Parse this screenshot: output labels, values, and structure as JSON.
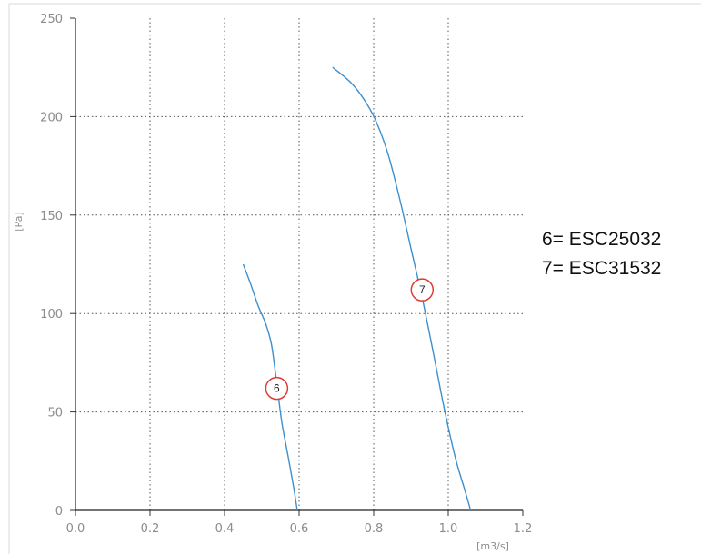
{
  "chart_data": {
    "type": "line",
    "title": "",
    "xlabel": "[m3/s]",
    "ylabel": "[Pa]",
    "xlim": [
      0,
      1.2
    ],
    "ylim": [
      0,
      250
    ],
    "x_ticks": [
      "0.0",
      "0.2",
      "0.4",
      "0.6",
      "0.8",
      "1.0",
      "1.2"
    ],
    "y_ticks": [
      "0",
      "50",
      "100",
      "150",
      "200",
      "250"
    ],
    "grid": true,
    "grid_style": "dotted",
    "line_color": "#3d8fcc",
    "marker_color": "#e03b2f",
    "series": [
      {
        "marker_label": "6",
        "marker_at": {
          "x": 0.54,
          "y": 62
        },
        "points": [
          {
            "x": 0.45,
            "y": 125
          },
          {
            "x": 0.47,
            "y": 115
          },
          {
            "x": 0.49,
            "y": 104
          },
          {
            "x": 0.51,
            "y": 95
          },
          {
            "x": 0.525,
            "y": 85
          },
          {
            "x": 0.535,
            "y": 72
          },
          {
            "x": 0.545,
            "y": 57
          },
          {
            "x": 0.555,
            "y": 43
          },
          {
            "x": 0.57,
            "y": 28
          },
          {
            "x": 0.585,
            "y": 12
          },
          {
            "x": 0.595,
            "y": 0
          }
        ]
      },
      {
        "marker_label": "7",
        "marker_at": {
          "x": 0.93,
          "y": 112
        },
        "points": [
          {
            "x": 0.69,
            "y": 225
          },
          {
            "x": 0.74,
            "y": 217
          },
          {
            "x": 0.78,
            "y": 207
          },
          {
            "x": 0.81,
            "y": 196
          },
          {
            "x": 0.84,
            "y": 180
          },
          {
            "x": 0.87,
            "y": 158
          },
          {
            "x": 0.9,
            "y": 133
          },
          {
            "x": 0.93,
            "y": 108
          },
          {
            "x": 0.96,
            "y": 80
          },
          {
            "x": 0.99,
            "y": 51
          },
          {
            "x": 1.02,
            "y": 26
          },
          {
            "x": 1.045,
            "y": 10
          },
          {
            "x": 1.06,
            "y": 0
          }
        ]
      }
    ]
  },
  "legend": {
    "line1": "6= ESC25032",
    "line2": "7= ESC31532"
  }
}
